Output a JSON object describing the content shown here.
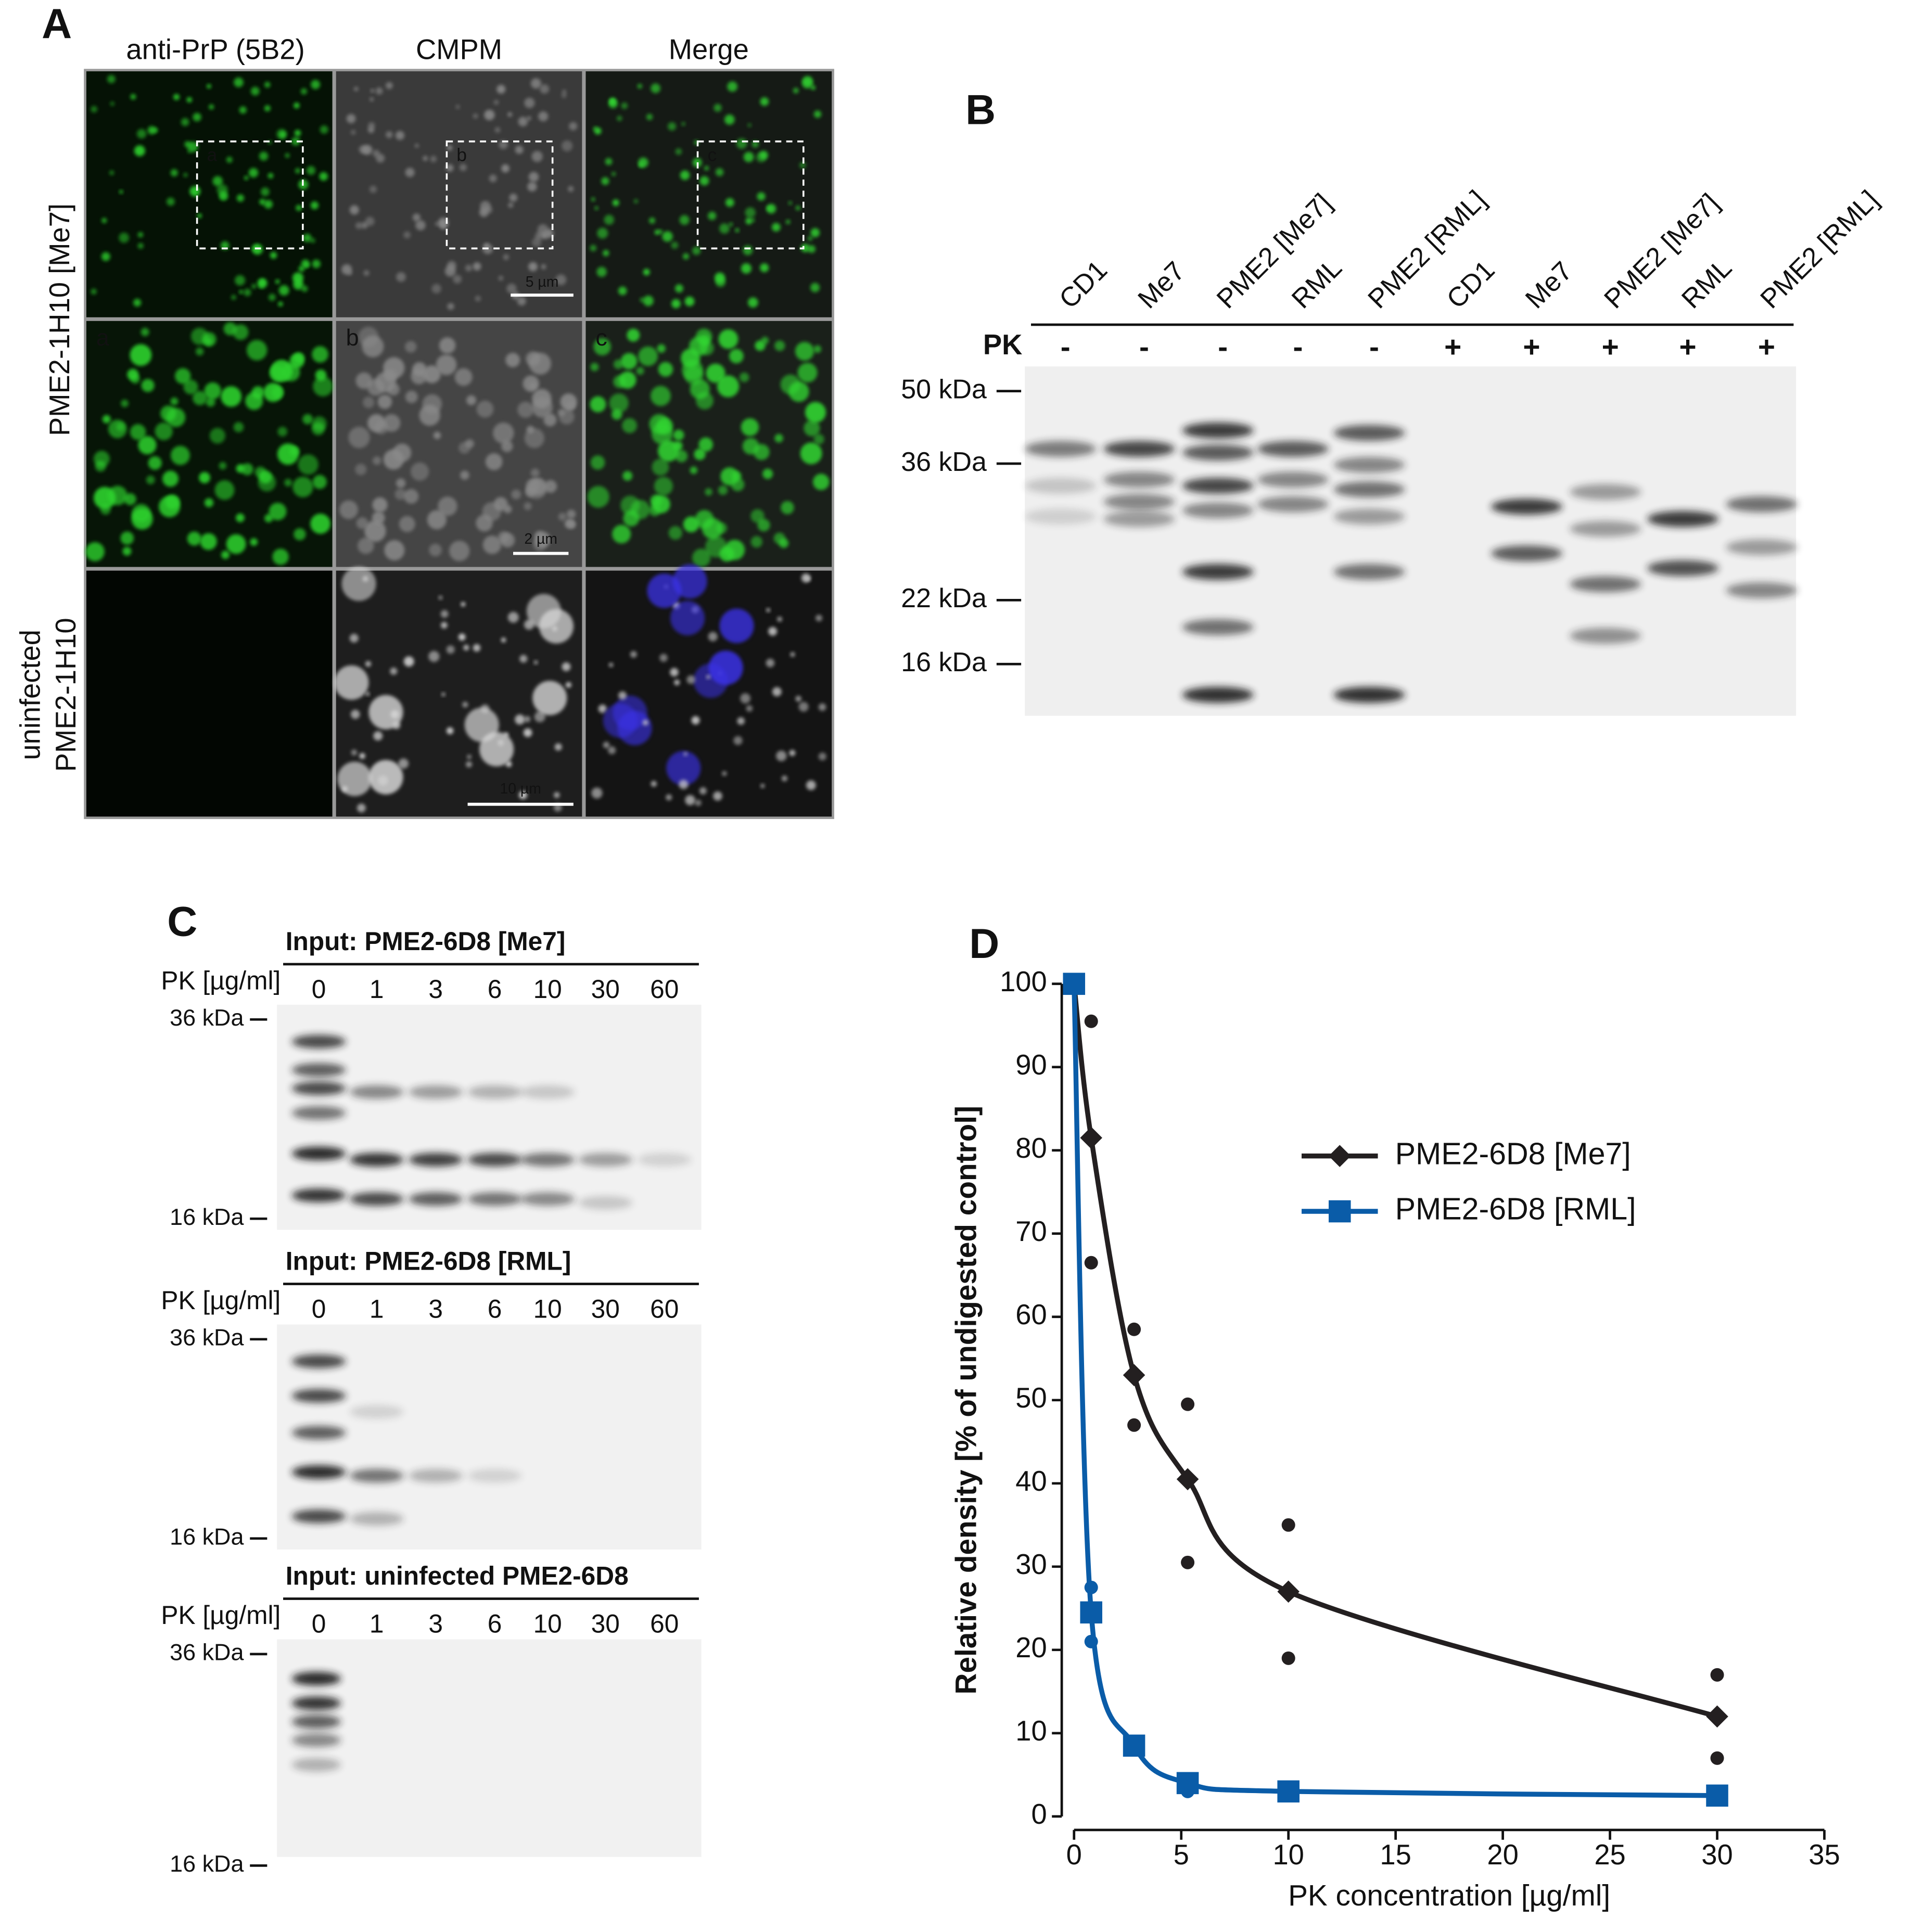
{
  "panel_a": {
    "label": "A",
    "columns": [
      "anti-PrP (5B2)",
      "CMPM",
      "Merge"
    ],
    "rows": [
      [
        "PME2-1H10 [Me7]"
      ],
      [
        "uninfected",
        "PME2-1H10"
      ]
    ],
    "inset_labels": [
      "a",
      "b",
      "c"
    ],
    "scale_bars": [
      "5 µm",
      "2 µm",
      "10 µm"
    ]
  },
  "panel_b": {
    "label": "B",
    "lanes": [
      "CD1",
      "Me7",
      "PME2 [Me7]",
      "RML",
      "PME2 [RML]",
      "CD1",
      "Me7",
      "PME2 [Me7]",
      "RML",
      "PME2 [RML]"
    ],
    "pk_label": "PK",
    "pk": [
      "-",
      "-",
      "-",
      "-",
      "-",
      "+",
      "+",
      "+",
      "+",
      "+"
    ],
    "markers": [
      "50 kDa",
      "36 kDa",
      "22 kDa",
      "16 kDa"
    ]
  },
  "panel_c": {
    "label": "C",
    "blots": [
      {
        "title": "Input: PME2-6D8 [Me7]",
        "pk_label": "PK [µg/ml]",
        "lanes": [
          "0",
          "1",
          "3",
          "6",
          "10",
          "30",
          "60"
        ],
        "markers": [
          "36 kDa",
          "16 kDa"
        ]
      },
      {
        "title": "Input: PME2-6D8 [RML]",
        "pk_label": "PK [µg/ml]",
        "lanes": [
          "0",
          "1",
          "3",
          "6",
          "10",
          "30",
          "60"
        ],
        "markers": [
          "36 kDa",
          "16 kDa"
        ]
      },
      {
        "title": "Input: uninfected PME2-6D8",
        "pk_label": "PK [µg/ml]",
        "lanes": [
          "0",
          "1",
          "3",
          "6",
          "10",
          "30",
          "60"
        ],
        "markers": [
          "36 kDa",
          "16 kDa"
        ]
      }
    ]
  },
  "chart_data": {
    "type": "line",
    "panel_label": "D",
    "x_label": "PK concentration [µg/ml]",
    "y_label": "Relative density [% of undigested control]",
    "xlim": [
      0,
      35
    ],
    "xticks": [
      0,
      5,
      10,
      15,
      20,
      25,
      30,
      35
    ],
    "ylim": [
      0,
      100
    ],
    "yticks": [
      0,
      10,
      20,
      30,
      40,
      50,
      60,
      70,
      80,
      90,
      100
    ],
    "legend": "upper right",
    "series": [
      {
        "name": "PME2-6D8 [Me7]",
        "color": "#231f20",
        "marker": "diamond",
        "x": [
          0,
          0.8,
          2.8,
          5.3,
          10,
          30
        ],
        "values": [
          100,
          81.5,
          53,
          40.5,
          27,
          12
        ],
        "replicates": {
          "x": [
            0.8,
            0.8,
            2.8,
            2.8,
            5.3,
            5.3,
            10,
            10,
            30,
            30
          ],
          "values": [
            95.5,
            66.5,
            58.5,
            47,
            49.5,
            30.5,
            35,
            19,
            17,
            7
          ]
        }
      },
      {
        "name": "PME2-6D8 [RML]",
        "color": "#0a5ca8",
        "marker": "square",
        "x": [
          0,
          0.8,
          2.8,
          5.3,
          10,
          30
        ],
        "values": [
          100,
          24.5,
          8.5,
          4,
          3,
          2.5
        ],
        "replicates": {
          "x": [
            0.8,
            0.8,
            5.3
          ],
          "values": [
            27.5,
            21,
            3
          ]
        }
      }
    ]
  }
}
